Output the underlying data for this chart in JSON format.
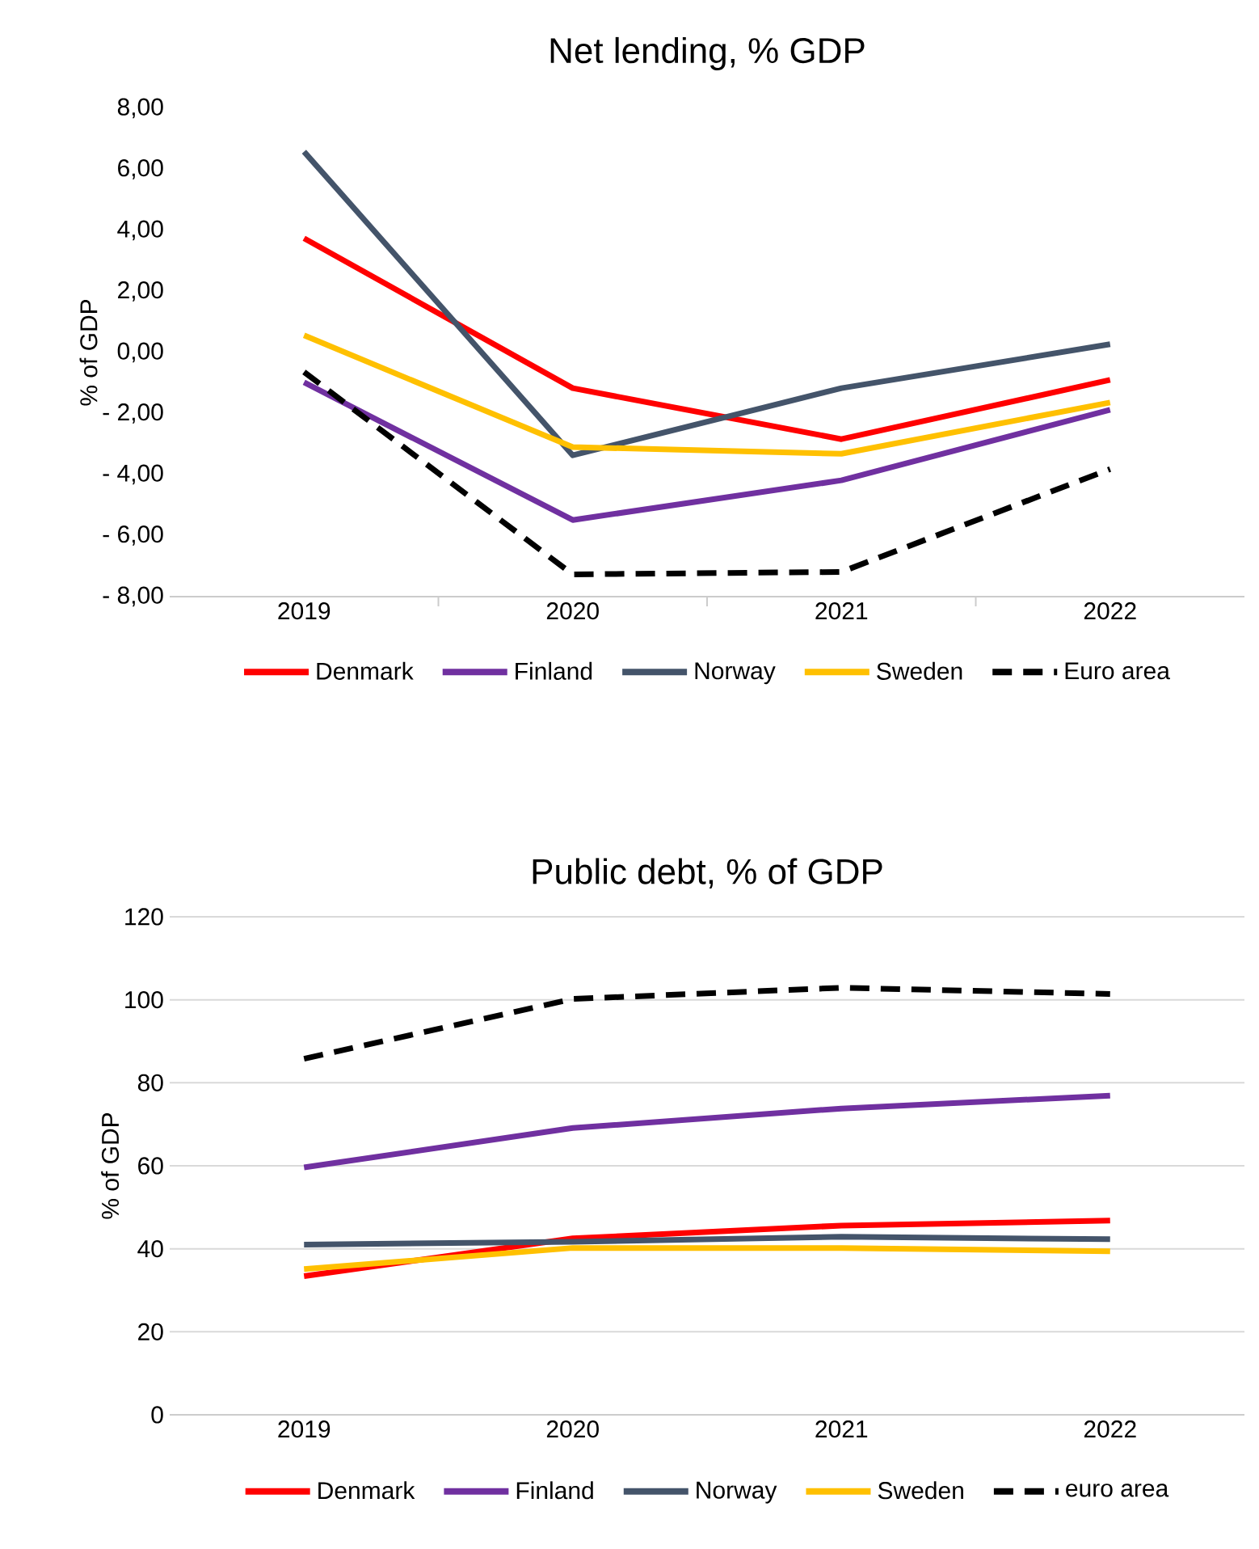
{
  "chart_data": [
    {
      "type": "line",
      "title": "Net lending, % GDP",
      "ylabel": "% of GDP",
      "categories": [
        "2019",
        "2020",
        "2021",
        "2022"
      ],
      "ylim": [
        -8,
        8
      ],
      "yticks": [
        {
          "value": -8,
          "label": "- 8,00"
        },
        {
          "value": -6,
          "label": "- 6,00"
        },
        {
          "value": -4,
          "label": "- 4,00"
        },
        {
          "value": -2,
          "label": "- 2,00"
        },
        {
          "value": 0,
          "label": "0,00"
        },
        {
          "value": 2,
          "label": "2,00"
        },
        {
          "value": 4,
          "label": "4,00"
        },
        {
          "value": 6,
          "label": "6,00"
        },
        {
          "value": 8,
          "label": "8,00"
        }
      ],
      "grid": false,
      "legend": "bottom",
      "marker": "none",
      "series": [
        {
          "name": "Denmark",
          "color": "#ff0000",
          "values": [
            3.74,
            -1.17,
            -2.84,
            -0.9
          ]
        },
        {
          "name": "Finland",
          "color": "#7030a0",
          "values": [
            -0.98,
            -5.49,
            -4.19,
            -1.88
          ]
        },
        {
          "name": "Norway",
          "color": "#44546a",
          "values": [
            6.58,
            -3.37,
            -1.17,
            0.27
          ]
        },
        {
          "name": "Sweden",
          "color": "#ffc000",
          "values": [
            0.56,
            -3.1,
            -3.32,
            -1.64
          ]
        },
        {
          "name": "Euro area",
          "color": "#000000",
          "line_style": "dashed",
          "values": [
            -0.64,
            -7.27,
            -7.19,
            -3.82
          ]
        }
      ]
    },
    {
      "type": "line",
      "title": "Public debt, % of GDP",
      "ylabel": "% of GDP",
      "categories": [
        "2019",
        "2020",
        "2021",
        "2022"
      ],
      "ylim": [
        0,
        120
      ],
      "yticks": [
        0,
        20,
        40,
        60,
        80,
        100,
        120
      ],
      "grid": "y",
      "legend": "bottom",
      "marker": "none",
      "series": [
        {
          "name": "Denmark",
          "color": "#ff0000",
          "values": [
            33.4,
            42.5,
            45.6,
            46.8
          ]
        },
        {
          "name": "Finland",
          "color": "#7030a0",
          "values": [
            59.6,
            69.1,
            73.8,
            76.9
          ]
        },
        {
          "name": "Norway",
          "color": "#44546a",
          "values": [
            41.0,
            41.7,
            42.9,
            42.3
          ]
        },
        {
          "name": "Sweden",
          "color": "#ffc000",
          "values": [
            35.1,
            40.2,
            40.2,
            39.4
          ]
        },
        {
          "name": "euro area",
          "color": "#000000",
          "line_style": "dashed",
          "values": [
            85.8,
            100.2,
            102.9,
            101.4
          ]
        }
      ]
    }
  ]
}
